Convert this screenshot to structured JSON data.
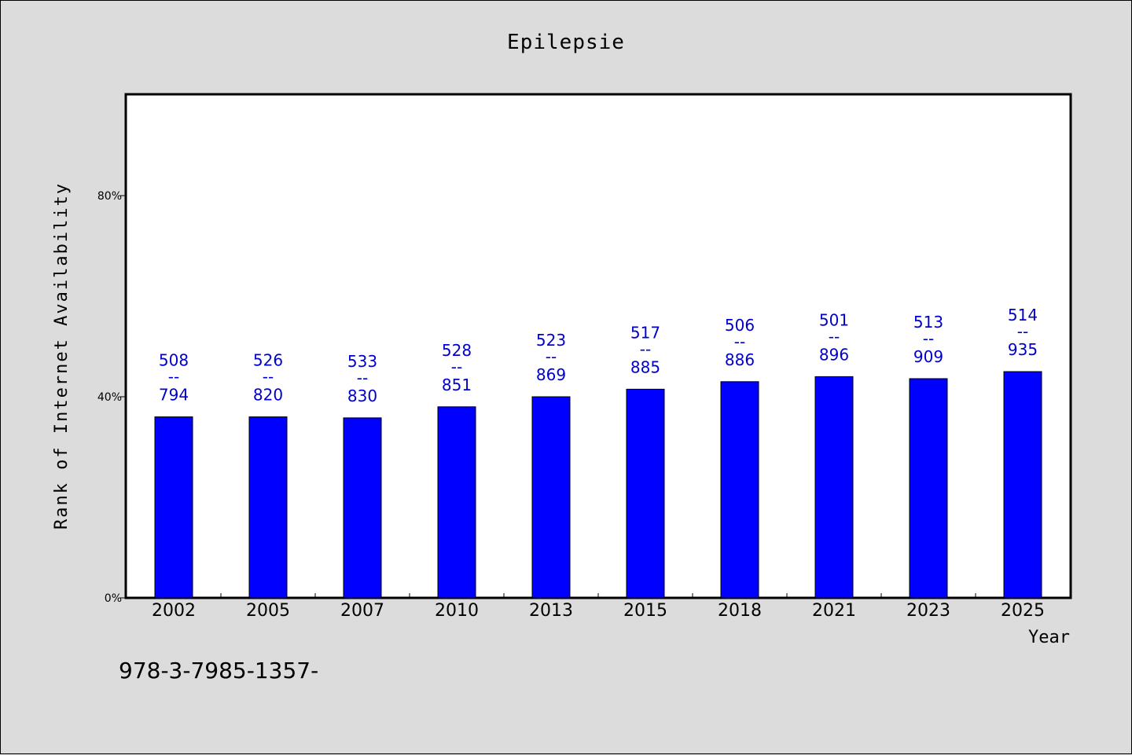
{
  "chart_data": {
    "type": "bar",
    "title": "Epilepsie",
    "xlabel": "Year",
    "ylabel": "Rank of Internet Availability",
    "categories": [
      "2002",
      "2005",
      "2007",
      "2010",
      "2013",
      "2015",
      "2018",
      "2021",
      "2023",
      "2025"
    ],
    "values": [
      0.36,
      0.36,
      0.358,
      0.38,
      0.4,
      0.415,
      0.43,
      0.44,
      0.436,
      0.45
    ],
    "labels_top": [
      "508",
      "526",
      "533",
      "528",
      "523",
      "517",
      "506",
      "501",
      "513",
      "514"
    ],
    "labels_sep": "--",
    "labels_bottom": [
      "794",
      "820",
      "830",
      "851",
      "869",
      "885",
      "886",
      "896",
      "909",
      "935"
    ],
    "ylim": [
      0,
      1.0
    ],
    "yticks": [
      0,
      0.4,
      0.8
    ],
    "ytick_labels": [
      "0%",
      "40%",
      "80%"
    ],
    "grid": false,
    "bar_color": "#0000ff",
    "label_color": "#0000cc",
    "background": "#dcdcdc",
    "plot_background": "#ffffff"
  },
  "footnote": "978-3-7985-1357-"
}
